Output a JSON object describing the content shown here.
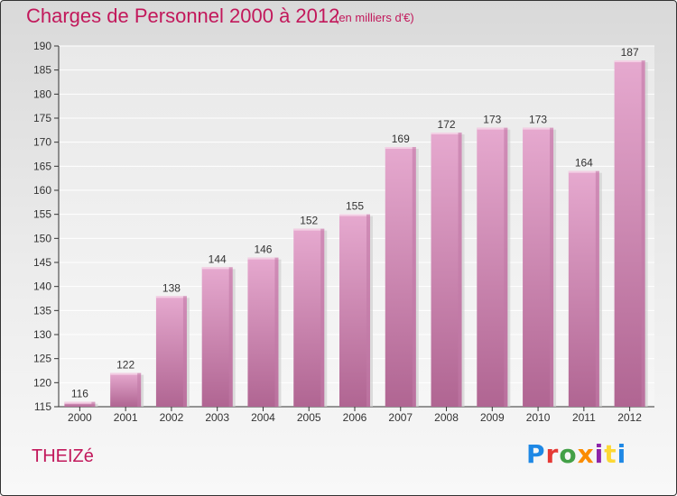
{
  "header": {
    "title": "Charges de Personnel 2000 à 2012",
    "subtitle": "(en milliers d'€)"
  },
  "commune": "THEIZé",
  "logo": {
    "text": "Proxiti",
    "letter_colors": [
      "#1e88e5",
      "#e53935",
      "#43a047",
      "#fb8c00",
      "#8e24aa",
      "#fdd835",
      "#1e88e5"
    ]
  },
  "colors": {
    "bar_top": "#e6a9cf",
    "bar_bottom": "#b06592",
    "bar_side": "#c27aa7",
    "accent": "#c2185b"
  },
  "chart_data": {
    "type": "bar",
    "categories": [
      "2000",
      "2001",
      "2002",
      "2003",
      "2004",
      "2005",
      "2006",
      "2007",
      "2008",
      "2009",
      "2010",
      "2011",
      "2012"
    ],
    "values": [
      116,
      122,
      138,
      144,
      146,
      152,
      155,
      169,
      172,
      173,
      173,
      164,
      187
    ],
    "ylim": [
      115,
      190
    ],
    "yticks": [
      115,
      120,
      125,
      130,
      135,
      140,
      145,
      150,
      155,
      160,
      165,
      170,
      175,
      180,
      185,
      190
    ],
    "grid": true,
    "data_labels": true
  }
}
